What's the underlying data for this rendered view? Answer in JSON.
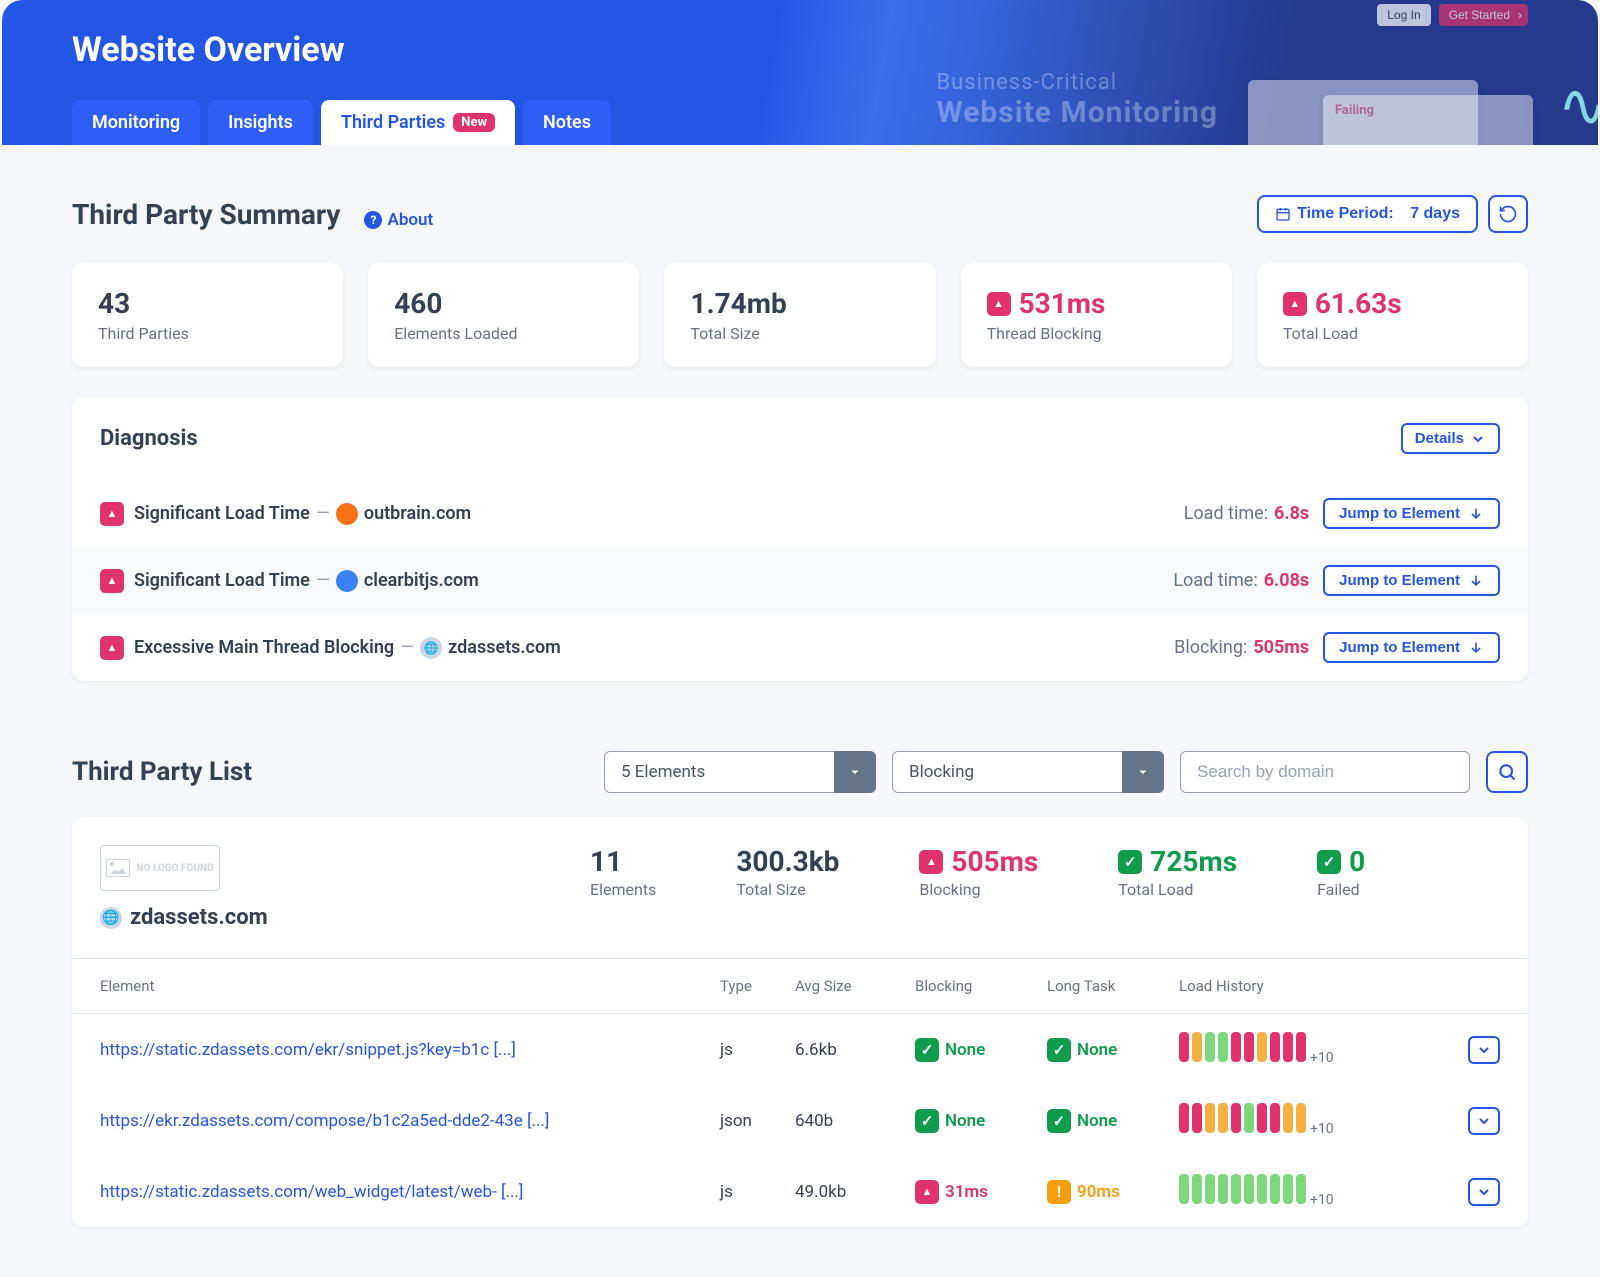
{
  "colors": {
    "primary": "#2456e6",
    "danger": "#e0326d",
    "success": "#0f9d4c",
    "warning": "#f59e0b",
    "hist_green": "#7dd87d",
    "hist_orange": "#f5b042",
    "hist_red": "#e0326d"
  },
  "header": {
    "login": "Log In",
    "get_started": "Get Started",
    "title": "Website Overview",
    "decor_line1": "Business-Critical",
    "decor_line2": "Website Monitoring",
    "decor_fail": "Failing",
    "tabs": [
      {
        "label": "Monitoring",
        "active": false
      },
      {
        "label": "Insights",
        "active": false
      },
      {
        "label": "Third Parties",
        "active": true,
        "badge": "New"
      },
      {
        "label": "Notes",
        "active": false
      }
    ]
  },
  "summary": {
    "title": "Third Party Summary",
    "about": "About",
    "time_period_label": "Time Period:",
    "time_period_value": "7 days",
    "stats": [
      {
        "value": "43",
        "label": "Third Parties",
        "alert": false
      },
      {
        "value": "460",
        "label": "Elements Loaded",
        "alert": false
      },
      {
        "value": "1.74mb",
        "label": "Total Size",
        "alert": false
      },
      {
        "value": "531ms",
        "label": "Thread Blocking",
        "alert": true
      },
      {
        "value": "61.63s",
        "label": "Total Load",
        "alert": true
      }
    ]
  },
  "diagnosis": {
    "title": "Diagnosis",
    "details_label": "Details",
    "jump_label": "Jump to Element",
    "rows": [
      {
        "issue": "Significant Load Time",
        "domain": "outbrain.com",
        "icon": "si-outbrain",
        "metric_label": "Load time:",
        "metric_value": "6.8s",
        "alt": false
      },
      {
        "issue": "Significant Load Time",
        "domain": "clearbitjs.com",
        "icon": "si-clearbit",
        "metric_label": "Load time:",
        "metric_value": "6.08s",
        "alt": true
      },
      {
        "issue": "Excessive Main Thread Blocking",
        "domain": "zdassets.com",
        "icon": "si-globe",
        "metric_label": "Blocking:",
        "metric_value": "505ms",
        "alt": false
      }
    ]
  },
  "list": {
    "title": "Third Party List",
    "filter1": "5 Elements",
    "filter2": "Blocking",
    "search_placeholder": "Search by domain"
  },
  "tp_detail": {
    "no_logo": "NO LOGO FOUND",
    "domain": "zdassets.com",
    "stats": [
      {
        "value": "11",
        "label": "Elements",
        "style": "plain"
      },
      {
        "value": "300.3kb",
        "label": "Total Size",
        "style": "plain"
      },
      {
        "value": "505ms",
        "label": "Blocking",
        "style": "red"
      },
      {
        "value": "725ms",
        "label": "Total Load",
        "style": "green"
      },
      {
        "value": "0",
        "label": "Failed",
        "style": "green"
      }
    ],
    "columns": {
      "element": "Element",
      "type": "Type",
      "size": "Avg Size",
      "blocking": "Blocking",
      "long": "Long Task",
      "history": "Load History"
    },
    "more_suffix": "+10",
    "rows": [
      {
        "element": "https://static.zdassets.com/ekr/snippet.js?key=b1c [...]",
        "type": "js",
        "size": "6.6kb",
        "blocking": {
          "style": "green",
          "text": "None"
        },
        "long": {
          "style": "green",
          "text": "None"
        },
        "history": [
          "#e0326d",
          "#f5b042",
          "#7dd87d",
          "#7dd87d",
          "#e0326d",
          "#e0326d",
          "#f5b042",
          "#e0326d",
          "#e0326d",
          "#e0326d"
        ]
      },
      {
        "element": "https://ekr.zdassets.com/compose/b1c2a5ed-dde2-43e [...]",
        "type": "json",
        "size": "640b",
        "blocking": {
          "style": "green",
          "text": "None"
        },
        "long": {
          "style": "green",
          "text": "None"
        },
        "history": [
          "#e0326d",
          "#e0326d",
          "#f5b042",
          "#f5b042",
          "#e0326d",
          "#7dd87d",
          "#e0326d",
          "#e0326d",
          "#f5b042",
          "#f5b042"
        ]
      },
      {
        "element": "https://static.zdassets.com/web_widget/latest/web- [...]",
        "type": "js",
        "size": "49.0kb",
        "blocking": {
          "style": "red",
          "text": "31ms"
        },
        "long": {
          "style": "orange",
          "text": "90ms"
        },
        "history": [
          "#7dd87d",
          "#7dd87d",
          "#7dd87d",
          "#7dd87d",
          "#7dd87d",
          "#7dd87d",
          "#7dd87d",
          "#7dd87d",
          "#7dd87d",
          "#7dd87d"
        ]
      }
    ]
  }
}
